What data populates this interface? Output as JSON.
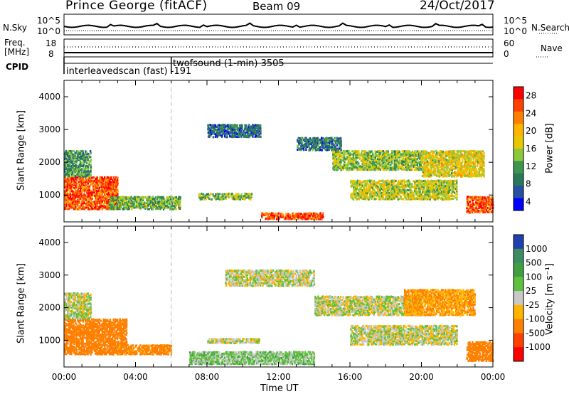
{
  "header": {
    "station": "Prince George (fitACF)",
    "beam": "Beam 09",
    "date": "24/Oct/2017"
  },
  "noise_panel": {
    "left_label": "N.Sky",
    "right_label": "N.Search",
    "left_ticks": [
      "10^5",
      "10^0"
    ],
    "right_ticks": [
      "10^5",
      "10^0"
    ]
  },
  "freq_panel": {
    "left_label_1": "Freq.",
    "left_label_2": "[MHz]",
    "right_label": "Nave",
    "left_ticks": [
      "18",
      "8"
    ],
    "right_ticks": [
      "60",
      "0"
    ]
  },
  "cpid_panel": {
    "label": "CPID",
    "entries": [
      {
        "text": "interleavedscan (fast) -191",
        "start_hour": 0
      },
      {
        "text": "twofsound (1-min) 3505",
        "start_hour": 6
      }
    ]
  },
  "x_axis": {
    "label": "Time UT",
    "ticks": [
      "00:00",
      "04:00",
      "08:00",
      "12:00",
      "16:00",
      "20:00",
      "00:00"
    ]
  },
  "power_panel": {
    "ylabel": "Slant Range [km]",
    "yticks": [
      "4000",
      "3000",
      "2000",
      "1000"
    ],
    "colorbar_label": "Power [dB]",
    "colorbar_ticks": [
      "28",
      "24",
      "20",
      "16",
      "12",
      "8",
      "4"
    ],
    "colors": [
      "#ff0000",
      "#ff4000",
      "#ff8000",
      "#ffb400",
      "#e6c800",
      "#8cc83c",
      "#3c9650",
      "#28785a",
      "#2850a0",
      "#0000ff"
    ]
  },
  "velocity_panel": {
    "ylabel": "Slant Range [km]",
    "yticks": [
      "4000",
      "3000",
      "2000",
      "1000"
    ],
    "colorbar_label": "Velocity [m s⁻¹]",
    "colorbar_ticks": [
      "1000",
      "500",
      "100",
      "25",
      "-25",
      "-100",
      "-500",
      "-1000"
    ],
    "colors": [
      "#2040b0",
      "#3c8c64",
      "#40a040",
      "#60c040",
      "#c8c8c8",
      "#ffb400",
      "#ff8000",
      "#ff4000",
      "#ff0000"
    ]
  },
  "chart_data": [
    {
      "type": "heatmap",
      "title": "Power",
      "x_range_hours": [
        0,
        24
      ],
      "y_range_km": [
        180,
        4500
      ],
      "colorbar": {
        "label": "Power [dB]",
        "range": [
          0,
          32
        ]
      },
      "regions": [
        {
          "t0": 0.0,
          "t1": 3.0,
          "r0": 600,
          "r1": 1600,
          "value": 28
        },
        {
          "t0": 0.0,
          "t1": 1.5,
          "r0": 1600,
          "r1": 2400,
          "value": 10
        },
        {
          "t0": 2.5,
          "t1": 6.5,
          "r0": 600,
          "r1": 1000,
          "value": 12
        },
        {
          "t0": 7.5,
          "t1": 10.5,
          "r0": 900,
          "r1": 1100,
          "value": 14
        },
        {
          "t0": 8.0,
          "t1": 11.0,
          "r0": 2800,
          "r1": 3200,
          "value": 6
        },
        {
          "t0": 11.0,
          "t1": 14.5,
          "r0": 300,
          "r1": 500,
          "value": 28
        },
        {
          "t0": 13.0,
          "t1": 15.5,
          "r0": 2400,
          "r1": 2800,
          "value": 7
        },
        {
          "t0": 15.0,
          "t1": 20.0,
          "r0": 1800,
          "r1": 2400,
          "value": 14
        },
        {
          "t0": 16.0,
          "t1": 22.0,
          "r0": 900,
          "r1": 1500,
          "value": 16
        },
        {
          "t0": 20.0,
          "t1": 23.5,
          "r0": 1600,
          "r1": 2400,
          "value": 18
        },
        {
          "t0": 22.5,
          "t1": 24.0,
          "r0": 500,
          "r1": 1000,
          "value": 28
        }
      ]
    },
    {
      "type": "heatmap",
      "title": "Velocity",
      "x_range_hours": [
        0,
        24
      ],
      "y_range_km": [
        180,
        4500
      ],
      "colorbar": {
        "label": "Velocity [m s⁻¹]",
        "range": [
          -1000,
          1000
        ]
      },
      "regions": [
        {
          "t0": 0.0,
          "t1": 3.5,
          "r0": 600,
          "r1": 1700,
          "value": -300
        },
        {
          "t0": 0.0,
          "t1": 1.5,
          "r0": 1700,
          "r1": 2500,
          "value": 0
        },
        {
          "t0": 3.0,
          "t1": 6.0,
          "r0": 600,
          "r1": 900,
          "value": -150
        },
        {
          "t0": 7.0,
          "t1": 14.0,
          "r0": 300,
          "r1": 700,
          "value": 50
        },
        {
          "t0": 8.0,
          "t1": 11.0,
          "r0": 950,
          "r1": 1100,
          "value": 0
        },
        {
          "t0": 9.0,
          "t1": 14.0,
          "r0": 2700,
          "r1": 3200,
          "value": 0
        },
        {
          "t0": 14.0,
          "t1": 20.0,
          "r0": 1800,
          "r1": 2400,
          "value": 0
        },
        {
          "t0": 16.0,
          "t1": 22.0,
          "r0": 900,
          "r1": 1500,
          "value": 0
        },
        {
          "t0": 19.0,
          "t1": 23.0,
          "r0": 1800,
          "r1": 2600,
          "value": -100
        },
        {
          "t0": 22.5,
          "t1": 24.0,
          "r0": 400,
          "r1": 1000,
          "value": -400
        }
      ]
    }
  ]
}
